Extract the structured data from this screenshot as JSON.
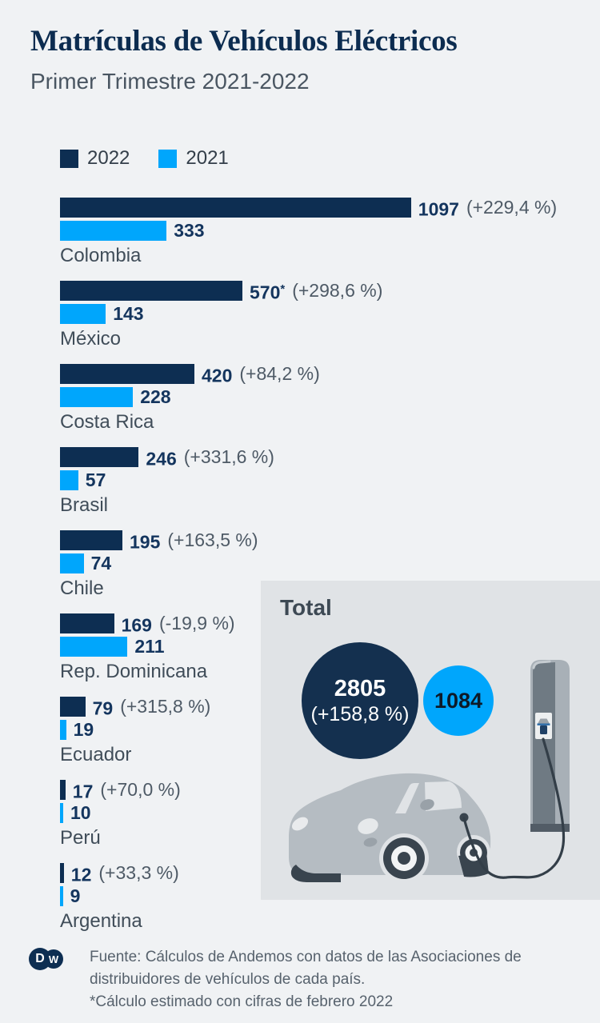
{
  "header": {
    "title": "Matrículas de Vehículos Eléctricos",
    "subtitle": "Primer Trimestre 2021-2022"
  },
  "legend": {
    "items": [
      {
        "label": "2022",
        "color": "#0d2e52"
      },
      {
        "label": "2021",
        "color": "#00a6fc"
      }
    ]
  },
  "rows": [
    {
      "country": "Colombia",
      "v2022": "1097",
      "note": "",
      "pct": "(+229,4 %)",
      "v2021": "333"
    },
    {
      "country": "México",
      "v2022": "570",
      "note": "*",
      "pct": "(+298,6 %)",
      "v2021": "143"
    },
    {
      "country": "Costa Rica",
      "v2022": "420",
      "note": "",
      "pct": "(+84,2 %)",
      "v2021": "228"
    },
    {
      "country": "Brasil",
      "v2022": "246",
      "note": "",
      "pct": "(+331,6 %)",
      "v2021": "57"
    },
    {
      "country": "Chile",
      "v2022": "195",
      "note": "",
      "pct": "(+163,5 %)",
      "v2021": "74"
    },
    {
      "country": "Rep. Dominicana",
      "v2022": "169",
      "note": "",
      "pct": "(-19,9 %)",
      "v2021": "211"
    },
    {
      "country": "Ecuador",
      "v2022": "79",
      "note": "",
      "pct": "(+315,8 %)",
      "v2021": "19"
    },
    {
      "country": "Perú",
      "v2022": "17",
      "note": "",
      "pct": "(+70,0 %)",
      "v2021": "10"
    },
    {
      "country": "Argentina",
      "v2022": "12",
      "note": "",
      "pct": "(+33,3 %)",
      "v2021": "9"
    }
  ],
  "total": {
    "heading": "Total",
    "v2022": "2805",
    "pct": "(+158,8 %)",
    "v2021": "1084"
  },
  "footer": {
    "logo_letters": {
      "d": "D",
      "w": "W"
    },
    "lines": [
      "Fuente: Cálculos de Andemos con datos de las Asociaciones de",
      "distribuidores de vehículos de cada país.",
      "*Cálculo estimado con cifras de febrero 2022"
    ]
  },
  "colors": {
    "background": "#f0f2f4",
    "total_box": "#e0e3e6",
    "bar_2022": "#0d2e52",
    "bar_2021": "#00a6fc",
    "title_text": "#0c2c50",
    "value_text": "#14355e",
    "pct_text": "#4e5a66",
    "country_text": "#404d59",
    "footer_text": "#57626d"
  },
  "chart_data": {
    "type": "bar",
    "orientation": "horizontal",
    "title": "Matrículas de Vehículos Eléctricos",
    "subtitle": "Primer Trimestre 2021-2022",
    "categories": [
      "Colombia",
      "México",
      "Costa Rica",
      "Brasil",
      "Chile",
      "Rep. Dominicana",
      "Ecuador",
      "Perú",
      "Argentina"
    ],
    "series": [
      {
        "name": "2022",
        "color": "#0d2e52",
        "values": [
          1097,
          570,
          420,
          246,
          195,
          169,
          79,
          17,
          12
        ]
      },
      {
        "name": "2021",
        "color": "#00a6fc",
        "values": [
          333,
          143,
          228,
          57,
          74,
          211,
          19,
          10,
          9
        ]
      }
    ],
    "pct_change_2022_vs_2021": [
      "+229,4 %",
      "+298,6 %",
      "+84,2 %",
      "+331,6 %",
      "+163,5 %",
      "-19,9 %",
      "+315,8 %",
      "+70,0 %",
      "+33,3 %"
    ],
    "annotations": [
      "570 is an estimate: *Cálculo estimado con cifras de febrero 2022"
    ],
    "totals": {
      "2022": 2805,
      "2021": 1084,
      "pct_change": "+158,8 %"
    },
    "value_axis_range": [
      0,
      1097
    ],
    "grid": false,
    "legend_position": "top-left",
    "data_labels": true
  }
}
